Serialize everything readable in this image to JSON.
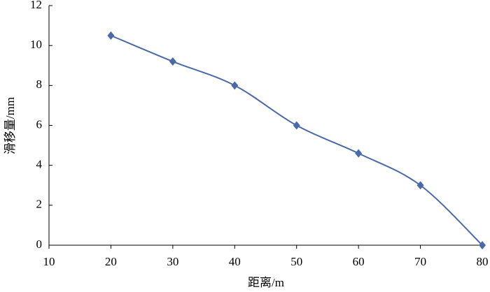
{
  "chart_data": {
    "type": "line",
    "x_label": "距离/m",
    "y_label": "滑移量/mm",
    "x": [
      20,
      30,
      40,
      50,
      60,
      70,
      80
    ],
    "series": [
      {
        "values": [
          10.5,
          9.2,
          8.0,
          6.0,
          4.6,
          3.0,
          0
        ],
        "color": "#4a69a9"
      }
    ],
    "xlim": [
      10,
      80
    ],
    "xticks": [
      10,
      20,
      30,
      40,
      50,
      60,
      70,
      80
    ],
    "ylim": [
      0,
      12
    ],
    "yticks": [
      0,
      2,
      4,
      6,
      8,
      10,
      12
    ],
    "smooth": true,
    "marker": "diamond",
    "grid": false
  }
}
